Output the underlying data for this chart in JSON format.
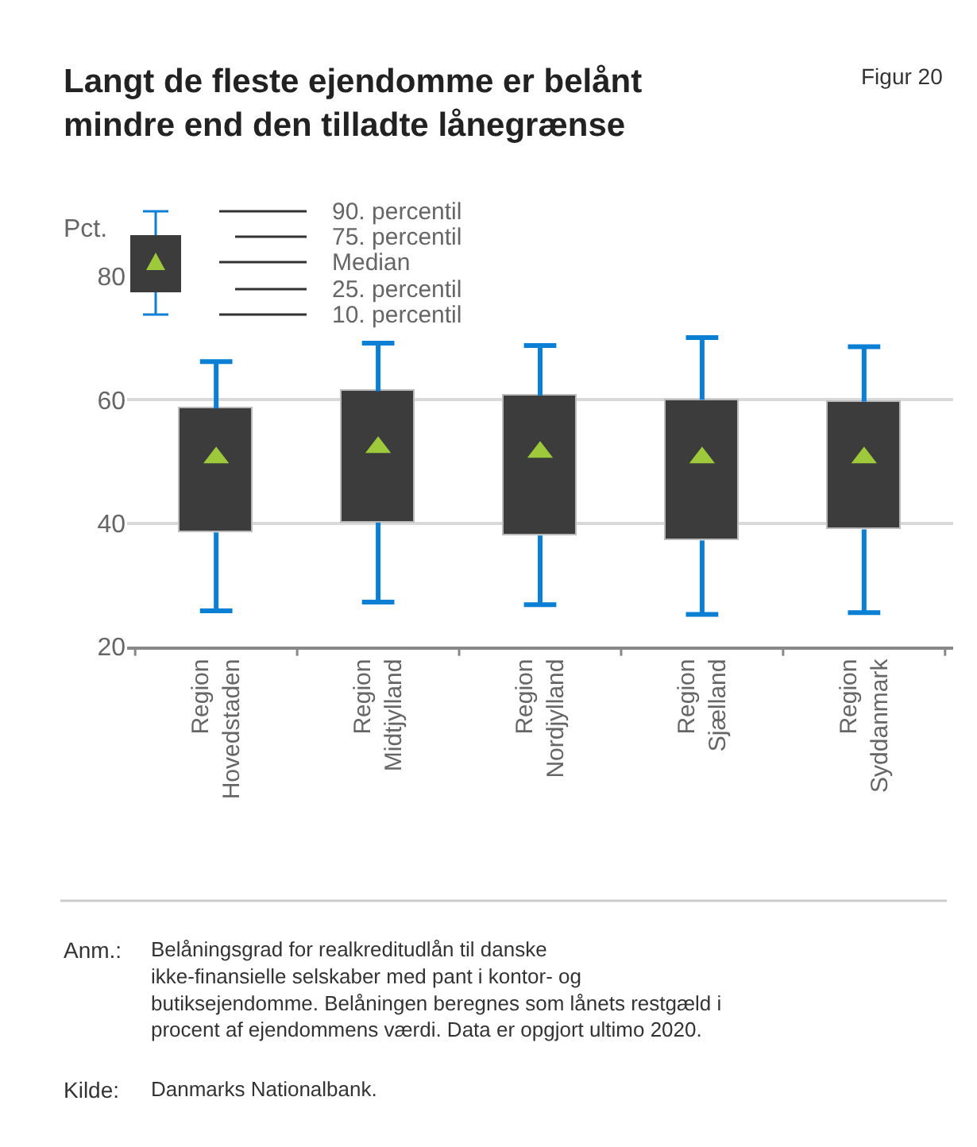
{
  "chart_data": {
    "type": "box",
    "title": "Langt de fleste ejendomme er belånt mindre end den tilladte lånegrænse",
    "ylabel": "Pct.",
    "categories": [
      "Region Hovedstaden",
      "Region Midtjylland",
      "Region Nordjylland",
      "Region Sjælland",
      "Region Syddanmark"
    ],
    "boxes": [
      {
        "low": 25.8,
        "q1": 38.5,
        "median": 50.6,
        "q3": 58.6,
        "high": 66.2
      },
      {
        "low": 27.2,
        "q1": 40.1,
        "median": 52.3,
        "q3": 61.4,
        "high": 69.2
      },
      {
        "low": 26.8,
        "q1": 38.0,
        "median": 51.5,
        "q3": 60.7,
        "high": 68.8
      },
      {
        "low": 25.2,
        "q1": 37.2,
        "median": 50.6,
        "q3": 60.0,
        "high": 70.1
      },
      {
        "low": 25.5,
        "q1": 39.0,
        "median": 50.6,
        "q3": 59.7,
        "high": 68.6
      }
    ],
    "color": "#3c3c3c",
    "marker": "triangle",
    "ylim": [
      20,
      80
    ],
    "yticks": [
      20,
      40,
      60,
      80
    ],
    "grid": "y",
    "annotations": [
      "90. percentil",
      "75. percentil",
      "Median",
      "25. percentil",
      "10. percentil",
      "Figur 20",
      "Anm.: Belåningsgrad for realkreditudlån til danske ikke-finansielle selskaber med pant i kontor- og butiksejendomme. Belåningen beregnes som lånets restgæld i procent af ejendommens værdi. Data er opgjort ultimo 2020.",
      "Kilde: Danmarks Nationalbank."
    ]
  }
}
